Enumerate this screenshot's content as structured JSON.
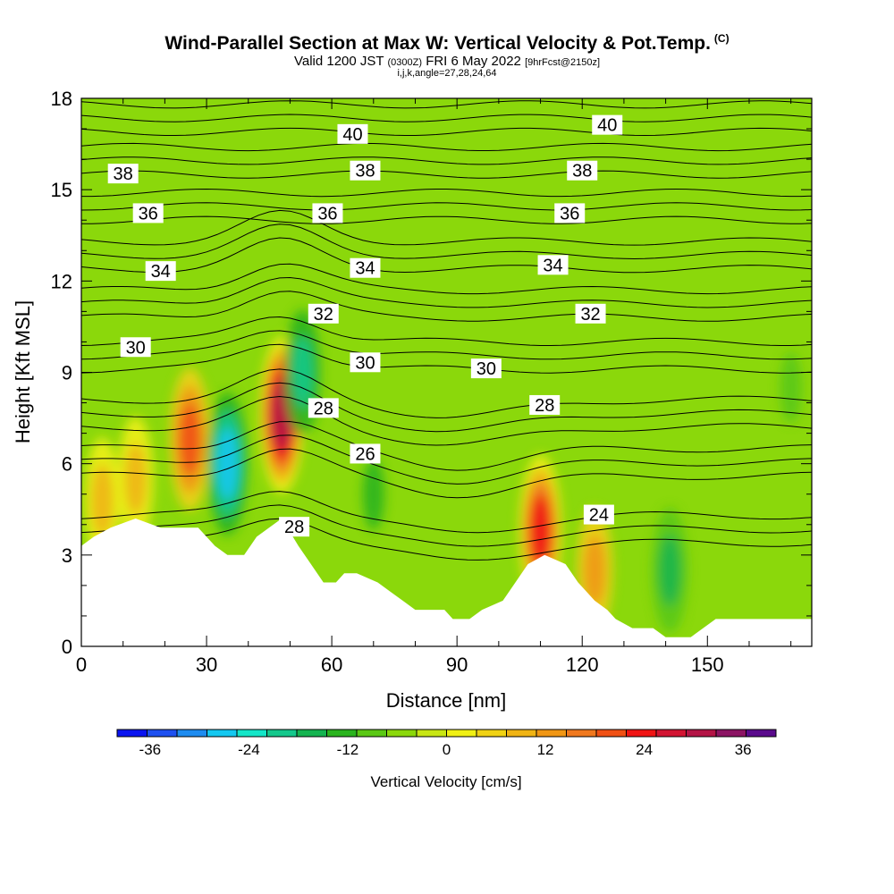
{
  "header": {
    "title": "Wind-Parallel Section at Max W: Vertical Velocity & Pot.Temp.",
    "copyright": "(C)",
    "valid_main": "Valid 1200 JST",
    "valid_utc": "(0300Z)",
    "valid_date": "FRI 6 May 2022",
    "forecast": "[9hrFcst@2150z]",
    "indices": "i,j,k,angle=27,28,24,64"
  },
  "colors": {
    "terrain": "#ffffff",
    "contour": "#000000",
    "background_field": "#8bd80b",
    "scale": [
      "#0a14f0",
      "#1e50f0",
      "#1e8cf0",
      "#14c8f0",
      "#14e6c8",
      "#14c88c",
      "#14b450",
      "#2ab41e",
      "#5ac814",
      "#8bd80b",
      "#c8e614",
      "#f0f014",
      "#f0d214",
      "#f0b414",
      "#f09614",
      "#f0781e",
      "#f05014",
      "#f01414",
      "#d21432",
      "#b41446",
      "#8c1464",
      "#5a0a8c"
    ]
  },
  "chart_data": {
    "type": "heatmap",
    "title": "Wind-Parallel Section at Max W: Vertical Velocity & Pot.Temp.",
    "xlabel": "Distance [nm]",
    "ylabel": "Height [Kft MSL]",
    "xlim": [
      0,
      175
    ],
    "ylim": [
      0,
      18
    ],
    "x_ticks": [
      0,
      30,
      60,
      90,
      120,
      150
    ],
    "y_ticks": [
      0,
      3,
      6,
      9,
      12,
      15,
      18
    ],
    "x_tick_labels": [
      "0",
      "30",
      "60",
      "90",
      "120",
      "150"
    ],
    "y_tick_labels": [
      "0",
      "3",
      "6",
      "9",
      "12",
      "15",
      "18"
    ],
    "colorbar": {
      "label": "Vertical Velocity [cm/s]",
      "min": -40,
      "max": 40,
      "step": 4,
      "tick_values": [
        -36,
        -24,
        -12,
        0,
        12,
        24,
        36
      ],
      "tick_labels": [
        "-36",
        "-24",
        "-12",
        "0",
        "12",
        "24",
        "36"
      ]
    },
    "terrain": [
      [
        0,
        3.3
      ],
      [
        3,
        3.6
      ],
      [
        7,
        3.9
      ],
      [
        13,
        4.2
      ],
      [
        19,
        3.9
      ],
      [
        28,
        3.9
      ],
      [
        32,
        3.3
      ],
      [
        35,
        3.0
      ],
      [
        39,
        3.0
      ],
      [
        42,
        3.6
      ],
      [
        48,
        4.2
      ],
      [
        52,
        3.3
      ],
      [
        55,
        2.7
      ],
      [
        58,
        2.1
      ],
      [
        61,
        2.1
      ],
      [
        63,
        2.4
      ],
      [
        66,
        2.4
      ],
      [
        71,
        2.1
      ],
      [
        74,
        1.8
      ],
      [
        77,
        1.5
      ],
      [
        80,
        1.2
      ],
      [
        87,
        1.2
      ],
      [
        89,
        0.9
      ],
      [
        93,
        0.9
      ],
      [
        96,
        1.2
      ],
      [
        101,
        1.5
      ],
      [
        104,
        2.1
      ],
      [
        107,
        2.7
      ],
      [
        111,
        3.0
      ],
      [
        116,
        2.7
      ],
      [
        119,
        2.1
      ],
      [
        123,
        1.5
      ],
      [
        126,
        1.2
      ],
      [
        128,
        0.9
      ],
      [
        132,
        0.6
      ],
      [
        137,
        0.6
      ],
      [
        140,
        0.3
      ],
      [
        146,
        0.3
      ],
      [
        152,
        0.9
      ],
      [
        175,
        0.9
      ]
    ],
    "vertical_velocity_features": [
      {
        "x": 26,
        "y": 6.8,
        "w_cm_s": 24
      },
      {
        "x": 35,
        "y": 6.0,
        "w_cm_s": -26
      },
      {
        "x": 48,
        "y": 7.6,
        "w_cm_s": 36
      },
      {
        "x": 53,
        "y": 9.0,
        "w_cm_s": -18
      },
      {
        "x": 110,
        "y": 3.8,
        "w_cm_s": 28
      },
      {
        "x": 5,
        "y": 4.8,
        "w_cm_s": 12
      },
      {
        "x": 13,
        "y": 5.5,
        "w_cm_s": 14
      },
      {
        "x": 141,
        "y": 2.5,
        "w_cm_s": -14
      },
      {
        "x": 70,
        "y": 5.0,
        "w_cm_s": -10
      },
      {
        "x": 170,
        "y": 8.5,
        "w_cm_s": -8
      },
      {
        "x": 123,
        "y": 2.5,
        "w_cm_s": 18
      }
    ],
    "potential_temperature_contours": [
      {
        "value": 24,
        "label": "24",
        "label_position": [
          124,
          4.3
        ]
      },
      {
        "value": 26,
        "label": "26",
        "label_position": [
          68,
          6.3
        ]
      },
      {
        "value": 28,
        "label": "28",
        "label_positions": [
          [
            58,
            7.8
          ],
          [
            51,
            3.9
          ],
          [
            111,
            7.9
          ]
        ]
      },
      {
        "value": 30,
        "label": "30",
        "label_positions": [
          [
            13,
            9.8
          ],
          [
            68,
            9.3
          ],
          [
            97,
            9.1
          ]
        ]
      },
      {
        "value": 32,
        "label": "32",
        "label_positions": [
          58,
          10.9
        ],
        "label_position_2": [
          122,
          10.9
        ]
      },
      {
        "value": 34,
        "label": "34",
        "label_positions": [
          [
            19,
            12.3
          ],
          [
            68,
            12.4
          ],
          [
            113,
            12.5
          ]
        ]
      },
      {
        "value": 36,
        "label": "36",
        "label_positions": [
          [
            16,
            14.2
          ],
          [
            59,
            14.2
          ],
          [
            117,
            14.2
          ]
        ]
      },
      {
        "value": 38,
        "label": "38",
        "label_positions": [
          [
            10,
            15.5
          ],
          [
            68,
            15.6
          ],
          [
            120,
            15.6
          ]
        ]
      },
      {
        "value": 40,
        "label": "40",
        "label_positions": [
          [
            65,
            16.8
          ],
          [
            126,
            17.1
          ]
        ]
      }
    ]
  }
}
